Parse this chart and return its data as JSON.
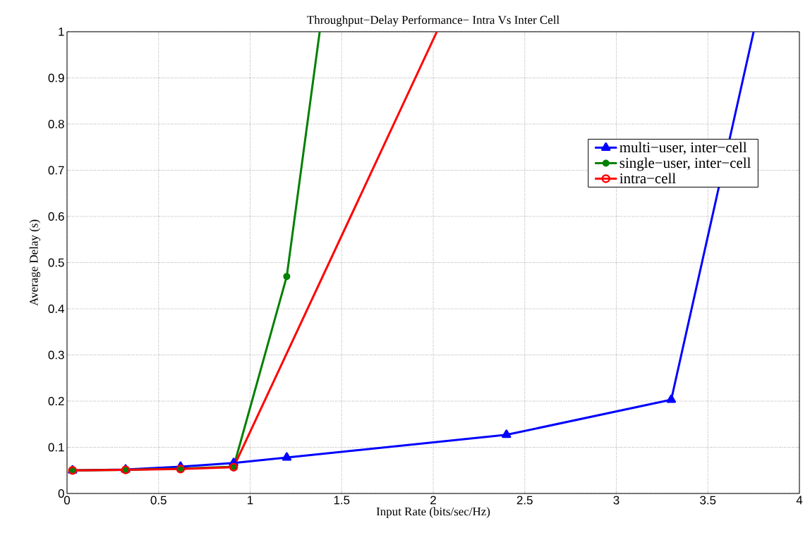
{
  "chart_data": {
    "type": "line",
    "title": "Throughput−Delay Performance− Intra Vs Inter Cell",
    "xlabel": "Input Rate (bits/sec/Hz)",
    "ylabel": "Average Delay (s)",
    "xlim": [
      0,
      4
    ],
    "ylim": [
      0,
      1
    ],
    "xticks": [
      0,
      0.5,
      1,
      1.5,
      2,
      2.5,
      3,
      3.5,
      4
    ],
    "yticks": [
      0,
      0.1,
      0.2,
      0.3,
      0.4,
      0.5,
      0.6,
      0.7,
      0.8,
      0.9,
      1
    ],
    "grid": true,
    "legend": "right",
    "line_style": "solid",
    "series": [
      {
        "name": "multi−user, inter−cell",
        "color": "#0000ff",
        "marker": "triangle",
        "x": [
          0.03,
          0.32,
          0.62,
          0.91,
          1.2,
          2.4,
          3.3,
          3.75
        ],
        "values": [
          0.05,
          0.052,
          0.058,
          0.066,
          0.078,
          0.127,
          0.203,
          1.0
        ]
      },
      {
        "name": "single−user, inter−cell",
        "color": "#008000",
        "marker": "circle",
        "x": [
          0.03,
          0.32,
          0.62,
          0.91,
          1.2,
          1.38
        ],
        "values": [
          0.05,
          0.051,
          0.054,
          0.058,
          0.47,
          1.0
        ]
      },
      {
        "name": "intra−cell",
        "color": "#ff0000",
        "marker": "circle",
        "x": [
          0.03,
          0.32,
          0.62,
          0.91,
          2.02
        ],
        "values": [
          0.05,
          0.051,
          0.053,
          0.057,
          1.0
        ]
      }
    ]
  }
}
